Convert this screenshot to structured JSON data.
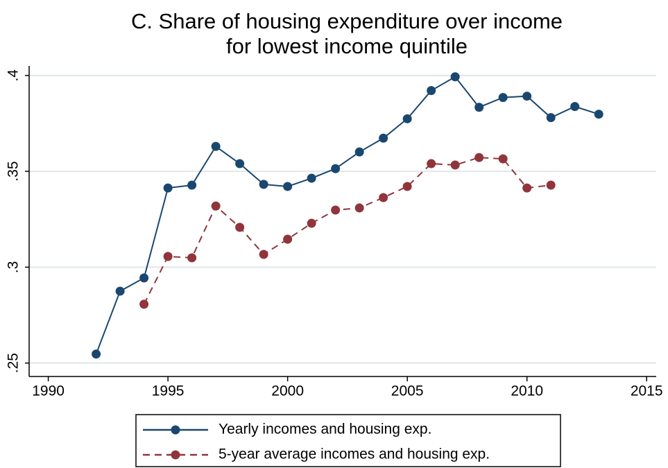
{
  "chart_data": {
    "type": "line",
    "title": [
      "C. Share of housing expenditure over income",
      "for lowest income quintile"
    ],
    "x": [
      1992,
      1993,
      1994,
      1995,
      1996,
      1997,
      1998,
      1999,
      2000,
      2001,
      2002,
      2003,
      2004,
      2005,
      2006,
      2007,
      2008,
      2009,
      2010,
      2011,
      2012,
      2013
    ],
    "series": [
      {
        "name": "Yearly incomes and housing exp.",
        "color": "#1a476f",
        "dash": false,
        "values": [
          0.2547,
          0.2875,
          0.2944,
          0.3413,
          0.3428,
          0.363,
          0.354,
          0.3432,
          0.3421,
          0.3464,
          0.3514,
          0.3601,
          0.3673,
          0.3774,
          0.3921,
          0.3993,
          0.3834,
          0.3885,
          0.3892,
          0.378,
          0.3838,
          0.3798
        ]
      },
      {
        "name": "5-year average incomes and housing exp.",
        "color": "#90353b",
        "dash": true,
        "values": [
          null,
          null,
          0.2807,
          0.3056,
          0.3049,
          0.3319,
          0.3208,
          0.3067,
          0.3146,
          0.3229,
          0.3298,
          0.3309,
          0.3363,
          0.3421,
          0.354,
          0.3533,
          0.3572,
          0.3565,
          0.3413,
          0.3428,
          null,
          null
        ]
      }
    ],
    "xlim": [
      1989.2,
      2015.4
    ],
    "xticks": [
      1990,
      1995,
      2000,
      2005,
      2010,
      2015
    ],
    "ylim": [
      0.243,
      0.405
    ],
    "yticks": [
      {
        "value": 0.25,
        "label": ".25"
      },
      {
        "value": 0.3,
        "label": ".3"
      },
      {
        "value": 0.35,
        "label": ".35"
      },
      {
        "value": 0.4,
        "label": ".4"
      }
    ],
    "grid": true,
    "legend": "bottom"
  }
}
